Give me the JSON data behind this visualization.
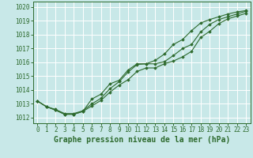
{
  "xlabel": "Graphe pression niveau de la mer (hPa)",
  "hours": [
    0,
    1,
    2,
    3,
    4,
    5,
    6,
    7,
    8,
    9,
    10,
    11,
    12,
    13,
    14,
    15,
    16,
    17,
    18,
    19,
    20,
    21,
    22,
    23
  ],
  "line1": [
    1013.2,
    1012.8,
    1012.6,
    1012.3,
    1012.3,
    1012.5,
    1013.0,
    1013.4,
    1014.1,
    1014.6,
    1015.3,
    1015.85,
    1015.9,
    1015.9,
    1016.05,
    1016.5,
    1017.0,
    1017.3,
    1018.2,
    1018.75,
    1019.1,
    1019.3,
    1019.5,
    1019.7
  ],
  "line2": [
    1013.2,
    1012.8,
    1012.55,
    1012.25,
    1012.25,
    1012.45,
    1012.85,
    1013.25,
    1013.85,
    1014.35,
    1014.75,
    1015.35,
    1015.6,
    1015.6,
    1015.9,
    1016.1,
    1016.4,
    1016.8,
    1017.8,
    1018.25,
    1018.8,
    1019.15,
    1019.35,
    1019.55
  ],
  "line3": [
    1013.2,
    1012.8,
    1012.55,
    1012.25,
    1012.25,
    1012.45,
    1013.35,
    1013.7,
    1014.45,
    1014.7,
    1015.45,
    1015.9,
    1015.9,
    1016.15,
    1016.6,
    1017.3,
    1017.65,
    1018.3,
    1018.85,
    1019.1,
    1019.3,
    1019.5,
    1019.65,
    1019.75
  ],
  "line_color": "#2d6a2d",
  "bg_color": "#c8e8e8",
  "grid_color": "#ffffff",
  "ylim_min": 1011.6,
  "ylim_max": 1020.4,
  "yticks": [
    1012,
    1013,
    1014,
    1015,
    1016,
    1017,
    1018,
    1019,
    1020
  ],
  "tick_fontsize": 5.5,
  "xlabel_fontsize": 7.0,
  "marker": "D",
  "marker_size": 1.8,
  "linewidth": 0.8
}
